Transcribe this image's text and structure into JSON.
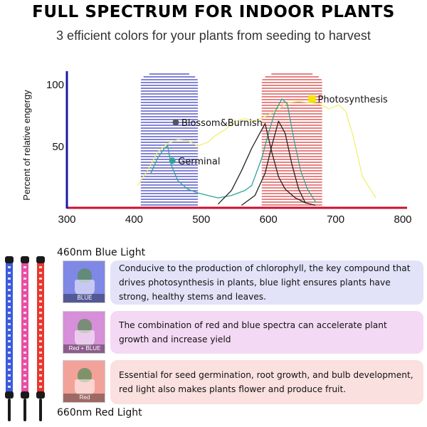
{
  "header": {
    "title": "FULL SPECTRUM FOR INDOOR PLANTS",
    "subtitle": "3 efficient colors for your plants from seeding to harvest"
  },
  "chart_data": {
    "type": "line",
    "ylabel": "Percent of relative engergy",
    "xlim": [
      300,
      800
    ],
    "ylim": [
      0,
      100
    ],
    "x_ticks": [
      300,
      400,
      500,
      600,
      700,
      800
    ],
    "y_ticks": [
      50,
      100
    ],
    "colors": {
      "x_axis": "#c8102e",
      "y_axis": "#1a1aa0",
      "blue_band": "#5a5ac8",
      "red_band": "#e05a5a",
      "photosynthesis": "#f0f070",
      "germinal": "#2fa39a",
      "blossom": "#222222"
    },
    "bands": [
      {
        "name": "blue",
        "range": [
          410,
          495
        ]
      },
      {
        "name": "red",
        "range": [
          590,
          680
        ]
      }
    ],
    "annotations": [
      {
        "label": "Photosynthesis",
        "x": 665,
        "y": 88,
        "color": "#f5e600"
      },
      {
        "label": "Blossom&Burnish",
        "x": 462,
        "y": 69,
        "color": "#555555"
      },
      {
        "label": "Germinal",
        "x": 457,
        "y": 38,
        "color": "#2fa39a"
      }
    ],
    "series": [
      {
        "key": "photosynthesis",
        "x": [
          405,
          420,
          435,
          450,
          465,
          480,
          495,
          510,
          520,
          535,
          550,
          565,
          580,
          600,
          615,
          630,
          645,
          660,
          675,
          690,
          705,
          715,
          725,
          740,
          760
        ],
        "y": [
          18,
          30,
          45,
          52,
          55,
          54,
          50,
          53,
          58,
          63,
          70,
          72,
          70,
          75,
          80,
          85,
          86,
          85,
          84,
          80,
          83,
          78,
          60,
          25,
          8
        ]
      },
      {
        "key": "germinal",
        "x": [
          425,
          435,
          445,
          450,
          455,
          465,
          480,
          495,
          510,
          525,
          545,
          565,
          575,
          590,
          600,
          610,
          620,
          628,
          638,
          648,
          658,
          670
        ],
        "y": [
          28,
          40,
          48,
          50,
          35,
          22,
          15,
          12,
          10,
          8,
          10,
          14,
          18,
          40,
          60,
          78,
          88,
          84,
          55,
          30,
          15,
          5
        ]
      },
      {
        "key": "blossom",
        "x": [
          525,
          545,
          560,
          575,
          585,
          595,
          605,
          615,
          625,
          640,
          655,
          670
        ],
        "y": [
          3,
          14,
          30,
          48,
          58,
          68,
          45,
          25,
          15,
          8,
          4,
          2
        ]
      },
      {
        "key": "blossom",
        "x": [
          560,
          580,
          595,
          605,
          615,
          625,
          635,
          645,
          655
        ],
        "y": [
          2,
          10,
          28,
          50,
          70,
          60,
          35,
          15,
          4
        ]
      }
    ]
  },
  "lights": {
    "blue_heading": "460nm Blue Light",
    "red_heading": "660nm Red Light",
    "colors": {
      "blue": "#3b5bdb",
      "pink": "#e64fa5",
      "red": "#e8382f"
    },
    "rows": [
      {
        "caption": "BLUE",
        "text": "Conducive to the production of chlorophyll, the key compound that drives photosynthesis in plants, blue light ensures plants have strong, healthy stems and leaves.",
        "bg": "#e2e2f8",
        "swatch": "#8088e6"
      },
      {
        "caption": "Red + BLUE",
        "text": "The combination of red and blue spectra can accelerate plant growth and increase yield",
        "bg": "#f3d9f3",
        "swatch": "#d68fd8"
      },
      {
        "caption": "Red",
        "text": "Essential for seed germination, root growth, and bulb development, red light also makes plants flower and produce fruit.",
        "bg": "#fbe0e0",
        "swatch": "#f3a29a"
      }
    ]
  }
}
